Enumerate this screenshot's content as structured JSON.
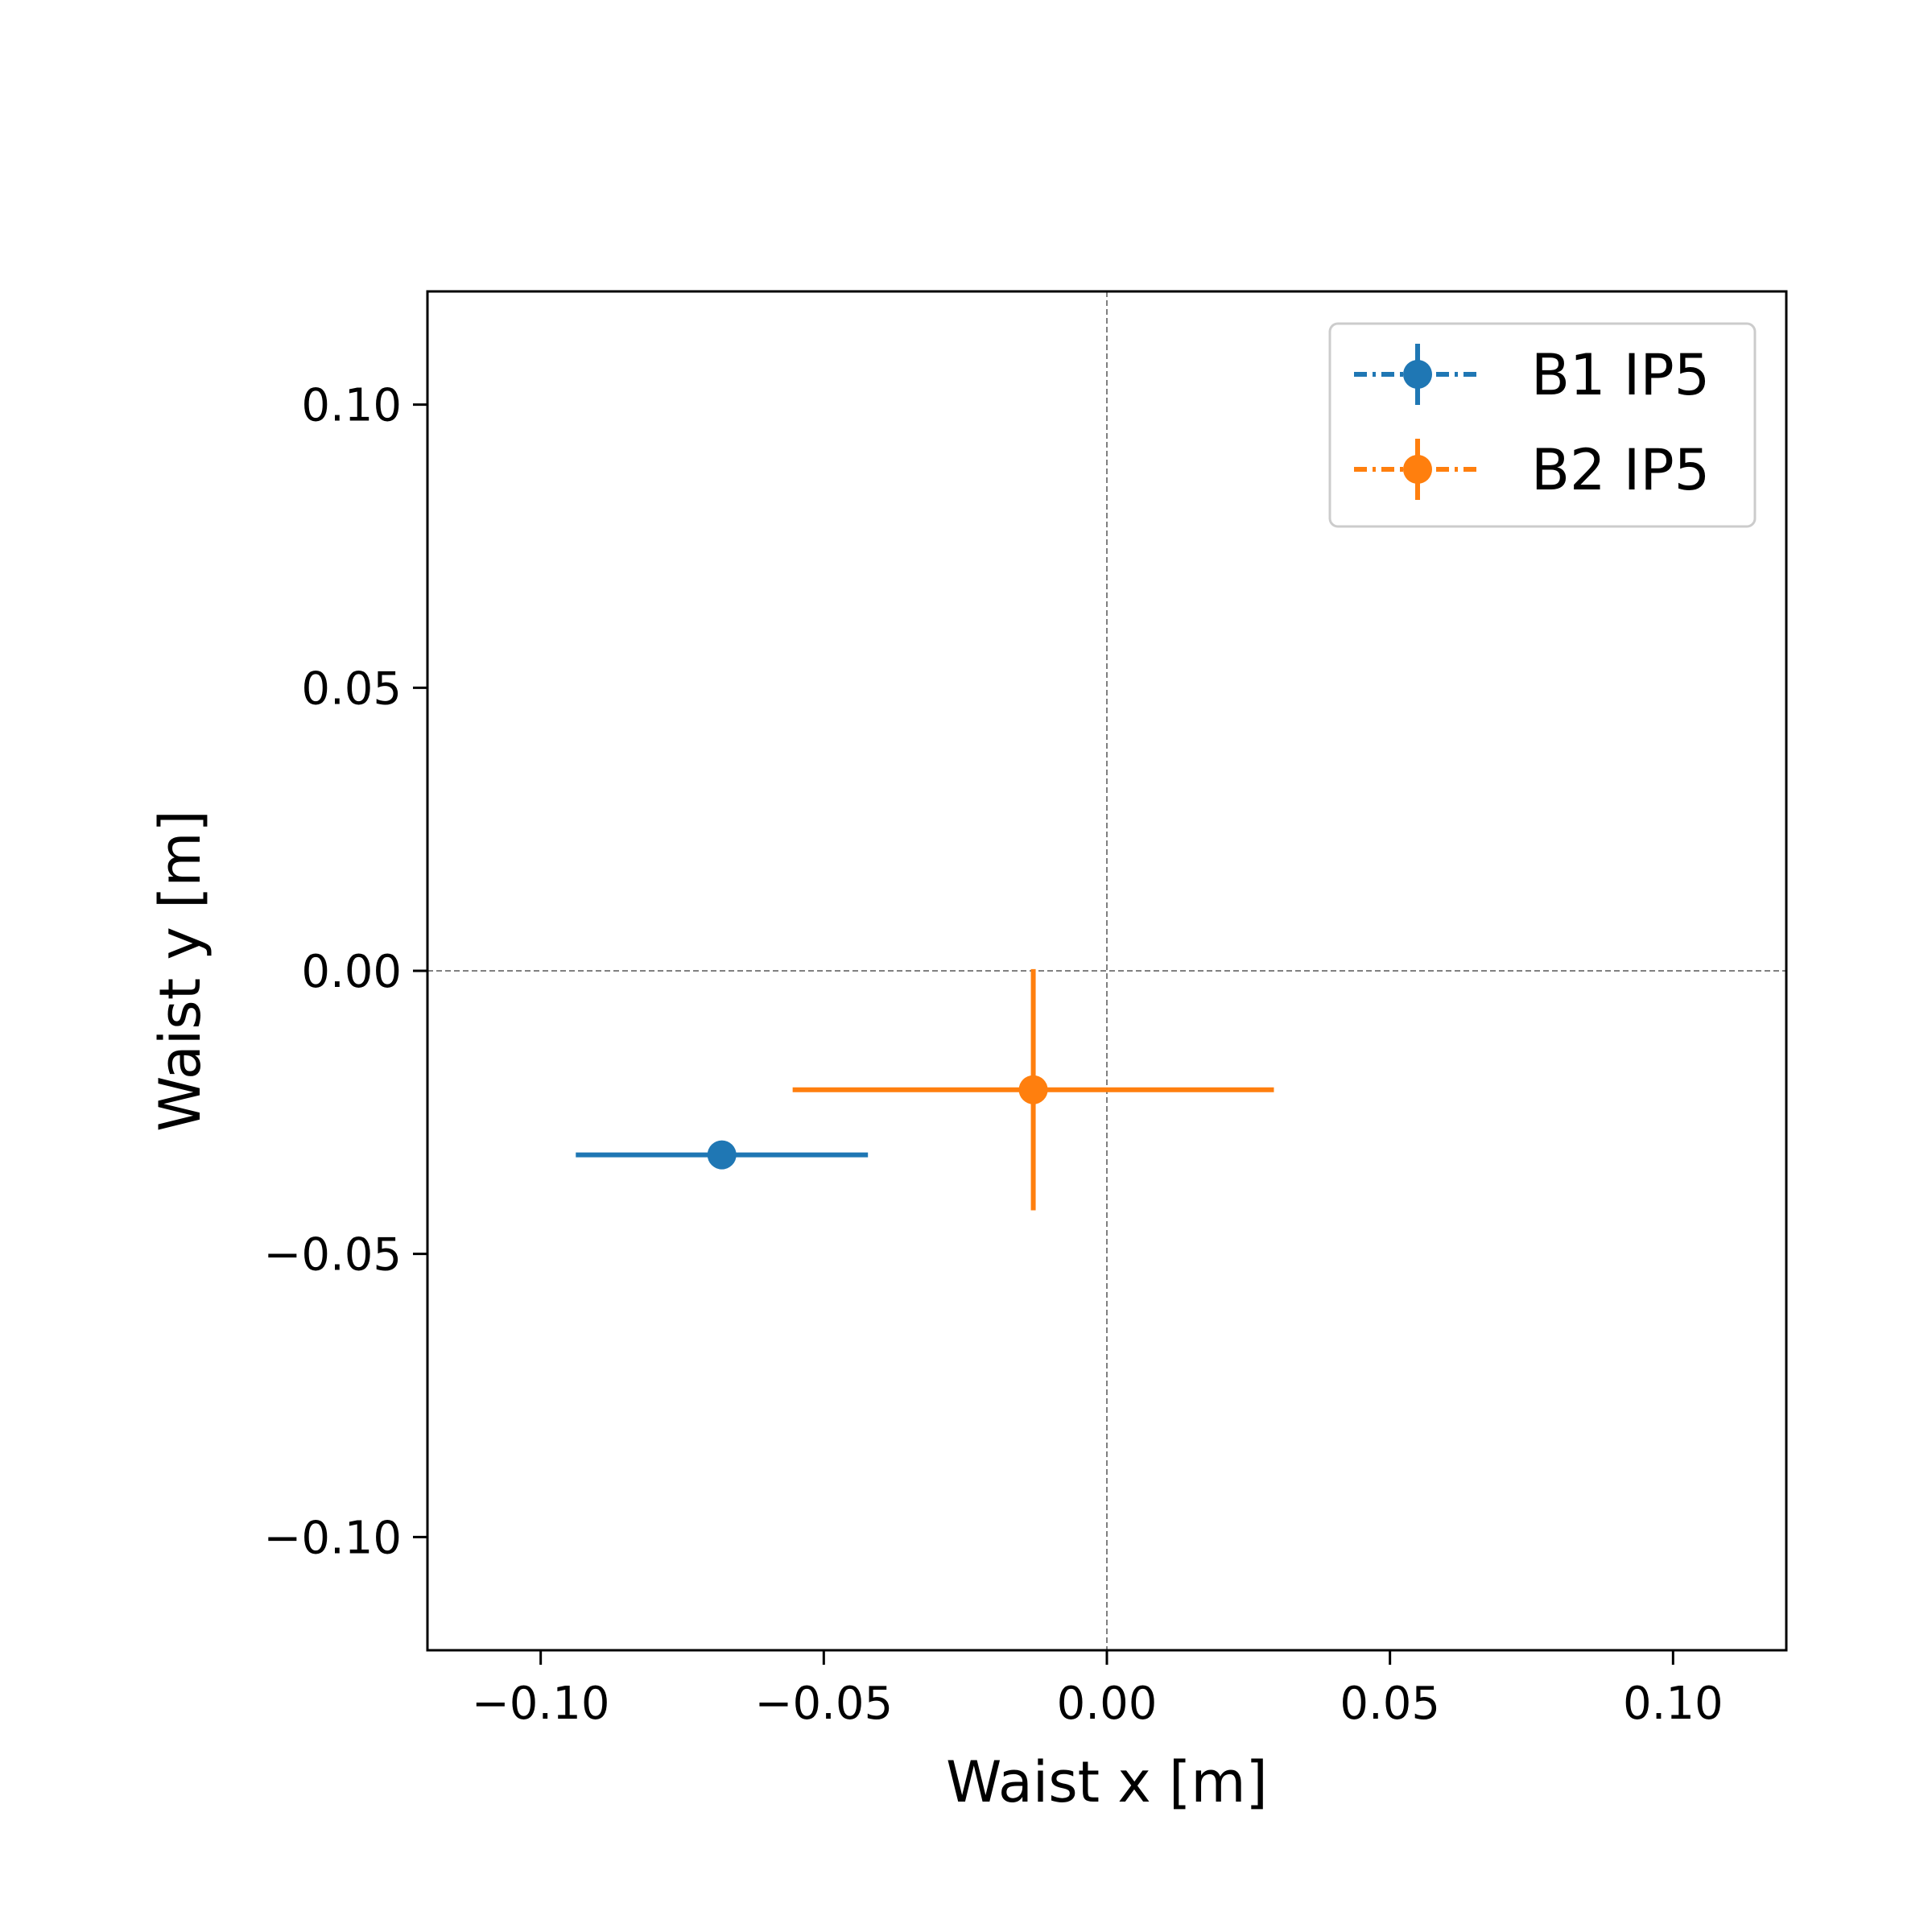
{
  "chart_data": {
    "type": "scatter",
    "title": "",
    "xlabel": "Waist x [m]",
    "ylabel": "Waist y [m]",
    "xlim": [
      -0.12,
      0.12
    ],
    "ylim": [
      -0.12,
      0.12
    ],
    "x_ticks": [
      {
        "value": -0.1,
        "label": "−0.10"
      },
      {
        "value": -0.05,
        "label": "−0.05"
      },
      {
        "value": 0.0,
        "label": "0.00"
      },
      {
        "value": 0.05,
        "label": "0.05"
      },
      {
        "value": 0.1,
        "label": "0.10"
      }
    ],
    "y_ticks": [
      {
        "value": -0.1,
        "label": "−0.10"
      },
      {
        "value": -0.05,
        "label": "−0.05"
      },
      {
        "value": 0.0,
        "label": "0.00"
      },
      {
        "value": 0.05,
        "label": "0.05"
      },
      {
        "value": 0.1,
        "label": "0.10"
      }
    ],
    "reference_lines": {
      "x": 0,
      "y": 0,
      "style": "dashed",
      "color": "#808080"
    },
    "grid": false,
    "legend_position": "top-right",
    "series": [
      {
        "name": "B1 IP5",
        "color": "#1f77b4",
        "points": [
          {
            "x": -0.068,
            "y": -0.0325,
            "xerr": 0.0258,
            "yerr": 0.0025
          }
        ]
      },
      {
        "name": "B2 IP5",
        "color": "#ff7f0e",
        "points": [
          {
            "x": -0.013,
            "y": -0.021,
            "xerr": 0.0425,
            "yerr": 0.0213
          }
        ]
      }
    ]
  }
}
